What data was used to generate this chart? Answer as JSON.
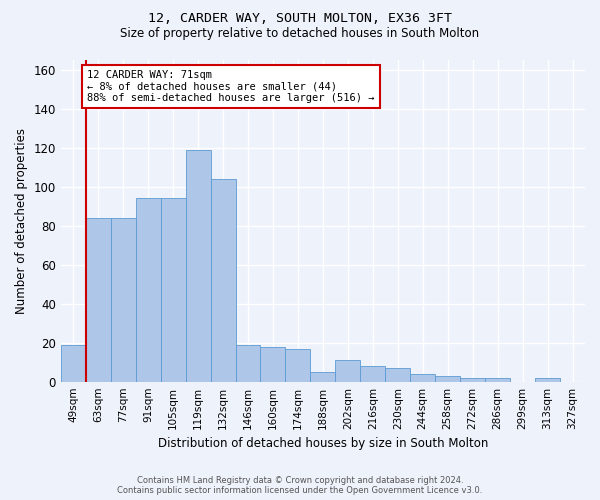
{
  "title_line1": "12, CARDER WAY, SOUTH MOLTON, EX36 3FT",
  "title_line2": "Size of property relative to detached houses in South Molton",
  "xlabel": "Distribution of detached houses by size in South Molton",
  "ylabel": "Number of detached properties",
  "categories": [
    "49sqm",
    "63sqm",
    "77sqm",
    "91sqm",
    "105sqm",
    "119sqm",
    "132sqm",
    "146sqm",
    "160sqm",
    "174sqm",
    "188sqm",
    "202sqm",
    "216sqm",
    "230sqm",
    "244sqm",
    "258sqm",
    "272sqm",
    "286sqm",
    "299sqm",
    "313sqm",
    "327sqm"
  ],
  "values": [
    19,
    84,
    84,
    94,
    94,
    119,
    104,
    19,
    18,
    17,
    5,
    11,
    8,
    7,
    4,
    3,
    2,
    2,
    0,
    2,
    0
  ],
  "bar_color": "#aec6e8",
  "bar_edge_color": "#5b9bd5",
  "background_color": "#eef2fb",
  "grid_color": "#ffffff",
  "annotation_text": "12 CARDER WAY: 71sqm\n← 8% of detached houses are smaller (44)\n88% of semi-detached houses are larger (516) →",
  "vline_pos": 0.5,
  "vline_color": "#cc0000",
  "annotation_box_color": "#cc0000",
  "ylim": [
    0,
    165
  ],
  "yticks": [
    0,
    20,
    40,
    60,
    80,
    100,
    120,
    140,
    160
  ],
  "footer_line1": "Contains HM Land Registry data © Crown copyright and database right 2024.",
  "footer_line2": "Contains public sector information licensed under the Open Government Licence v3.0."
}
